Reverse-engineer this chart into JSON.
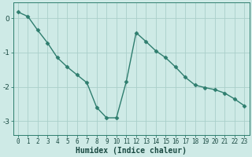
{
  "x": [
    0,
    1,
    2,
    3,
    4,
    5,
    6,
    7,
    8,
    9,
    10,
    11,
    12,
    13,
    14,
    15,
    16,
    17,
    18,
    19,
    20,
    21,
    22,
    23
  ],
  "y": [
    0.18,
    0.05,
    -0.35,
    -0.72,
    -1.15,
    -1.42,
    -1.65,
    -1.88,
    -2.6,
    -2.9,
    -2.9,
    -1.85,
    -0.42,
    -0.68,
    -0.95,
    -1.15,
    -1.42,
    -1.72,
    -1.95,
    -2.02,
    -2.08,
    -2.18,
    -2.35,
    -2.55
  ],
  "line_color": "#2e7d6e",
  "marker": "D",
  "markersize": 2.5,
  "linewidth": 1.0,
  "bg_color": "#ceeae6",
  "grid_color": "#aacfca",
  "xlabel": "Humidex (Indice chaleur)",
  "xlabel_fontsize": 7,
  "yticks": [
    0,
    -1,
    -2,
    -3
  ],
  "ylim": [
    -3.4,
    0.45
  ],
  "xlim": [
    -0.5,
    23.5
  ],
  "xtick_fontsize": 5.5,
  "ytick_fontsize": 6.5,
  "tick_color": "#2e7d6e",
  "label_color": "#1a4a42"
}
